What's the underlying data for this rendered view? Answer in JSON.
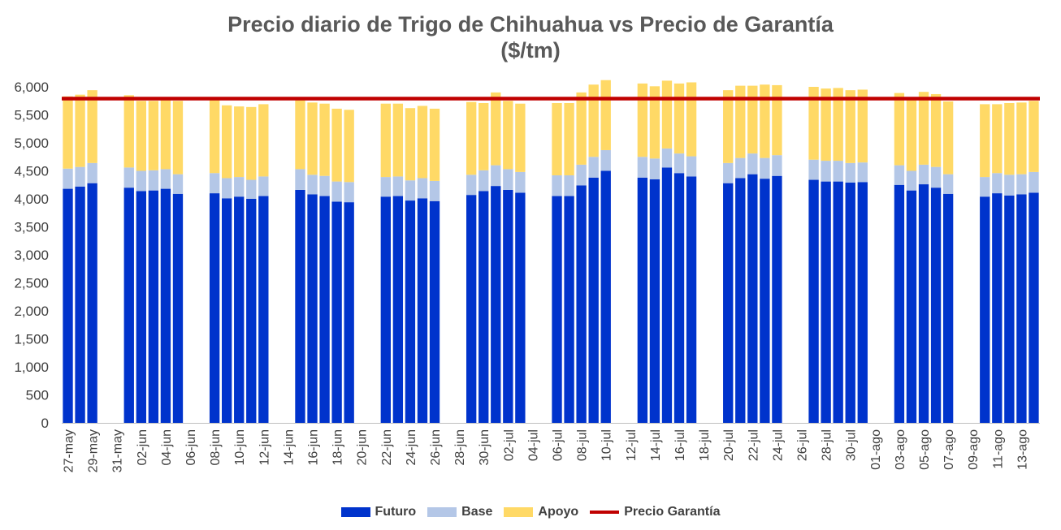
{
  "chart_data": {
    "type": "bar",
    "stacked": true,
    "title": "Precio diario de Trigo de Chihuahua vs Precio de Garantía",
    "subtitle": "($/tm)",
    "xlabel": "",
    "ylabel": "",
    "ylim": [
      0,
      6000
    ],
    "yticks": [
      "0",
      "500",
      "1,000",
      "1,500",
      "2,000",
      "2,500",
      "3,000",
      "3,500",
      "4,000",
      "4,500",
      "5,000",
      "5,500",
      "6,000"
    ],
    "grid": false,
    "legend_position": "bottom",
    "categories": [
      "27-may",
      "28-may",
      "29-may",
      "30-may",
      "31-may",
      "01-jun",
      "02-jun",
      "03-jun",
      "04-jun",
      "05-jun",
      "06-jun",
      "07-jun",
      "08-jun",
      "09-jun",
      "10-jun",
      "11-jun",
      "12-jun",
      "13-jun",
      "14-jun",
      "15-jun",
      "16-jun",
      "17-jun",
      "18-jun",
      "19-jun",
      "20-jun",
      "21-jun",
      "22-jun",
      "23-jun",
      "24-jun",
      "25-jun",
      "26-jun",
      "27-jun",
      "28-jun",
      "29-jun",
      "30-jun",
      "01-jul",
      "02-jul",
      "03-jul",
      "04-jul",
      "05-jul",
      "06-jul",
      "07-jul",
      "08-jul",
      "09-jul",
      "10-jul",
      "11-jul",
      "12-jul",
      "13-jul",
      "14-jul",
      "15-jul",
      "16-jul",
      "17-jul",
      "18-jul",
      "19-jul",
      "20-jul",
      "21-jul",
      "22-jul",
      "23-jul",
      "24-jul",
      "25-jul",
      "26-jul",
      "27-jul",
      "28-jul",
      "29-jul",
      "30-jul",
      "31-jul",
      "01-ago",
      "02-ago",
      "03-ago",
      "04-ago",
      "05-ago",
      "06-ago",
      "07-ago",
      "08-ago",
      "09-ago",
      "10-ago",
      "11-ago",
      "12-ago",
      "13-ago",
      "14-ago"
    ],
    "x_tick_labels": [
      "27-may",
      "29-may",
      "31-may",
      "02-jun",
      "04-jun",
      "06-jun",
      "08-jun",
      "10-jun",
      "12-jun",
      "14-jun",
      "16-jun",
      "18-jun",
      "20-jun",
      "22-jun",
      "24-jun",
      "26-jun",
      "28-jun",
      "30-jun",
      "02-jul",
      "04-jul",
      "06-jul",
      "08-jul",
      "10-jul",
      "12-jul",
      "14-jul",
      "16-jul",
      "18-jul",
      "20-jul",
      "22-jul",
      "24-jul",
      "26-jul",
      "28-jul",
      "30-jul",
      "01-ago",
      "03-ago",
      "05-ago",
      "07-ago",
      "09-ago",
      "11-ago",
      "13-ago"
    ],
    "series": [
      {
        "name": "Futuro",
        "color": "#0033CC",
        "values": [
          4180,
          4220,
          4280,
          null,
          null,
          4200,
          4140,
          4150,
          4180,
          4090,
          null,
          null,
          4100,
          4010,
          4040,
          4000,
          4050,
          null,
          null,
          4160,
          4080,
          4050,
          3950,
          3940,
          null,
          null,
          4040,
          4050,
          3970,
          4010,
          3960,
          null,
          null,
          4070,
          4140,
          4230,
          4160,
          4110,
          null,
          null,
          4050,
          4050,
          4240,
          4380,
          4500,
          null,
          null,
          4380,
          4350,
          4560,
          4460,
          4400,
          null,
          null,
          4280,
          4370,
          4440,
          4360,
          4410,
          null,
          null,
          4340,
          4310,
          4310,
          4290,
          4300,
          null,
          null,
          4250,
          4150,
          4260,
          4200,
          4090,
          null,
          null,
          4040,
          4100,
          4060,
          4080,
          4110
        ]
      },
      {
        "name": "Base",
        "color": "#B4C7E7",
        "values": [
          360,
          350,
          360,
          null,
          null,
          360,
          360,
          360,
          350,
          350,
          null,
          null,
          360,
          360,
          350,
          340,
          350,
          null,
          null,
          370,
          350,
          360,
          360,
          360,
          null,
          null,
          350,
          350,
          360,
          360,
          360,
          null,
          null,
          360,
          370,
          370,
          370,
          370,
          null,
          null,
          370,
          370,
          370,
          370,
          370,
          null,
          null,
          370,
          370,
          340,
          350,
          360,
          null,
          null,
          360,
          360,
          370,
          370,
          370,
          null,
          null,
          360,
          370,
          370,
          350,
          350,
          null,
          null,
          350,
          350,
          350,
          370,
          350,
          null,
          null,
          350,
          360,
          370,
          360,
          370
        ]
      },
      {
        "name": "Apoyo",
        "color": "#FFD966",
        "values": [
          1290,
          1290,
          1300,
          null,
          null,
          1290,
          1250,
          1240,
          1230,
          1310,
          null,
          null,
          1310,
          1300,
          1260,
          1300,
          1290,
          null,
          null,
          1230,
          1290,
          1290,
          1300,
          1290,
          null,
          null,
          1310,
          1300,
          1290,
          1290,
          1290,
          null,
          null,
          1300,
          1200,
          1300,
          1220,
          1220,
          null,
          null,
          1290,
          1290,
          1290,
          1290,
          1250,
          null,
          null,
          1310,
          1290,
          1210,
          1250,
          1320,
          null,
          null,
          1300,
          1290,
          1210,
          1310,
          1250,
          null,
          null,
          1300,
          1290,
          1300,
          1300,
          1300,
          null,
          null,
          1290,
          1280,
          1300,
          1300,
          1300,
          null,
          null,
          1300,
          1230,
          1280,
          1280,
          1270
        ]
      },
      {
        "name": "Precio Garantía",
        "type": "line",
        "color": "#C00000",
        "value": 5790
      }
    ]
  }
}
